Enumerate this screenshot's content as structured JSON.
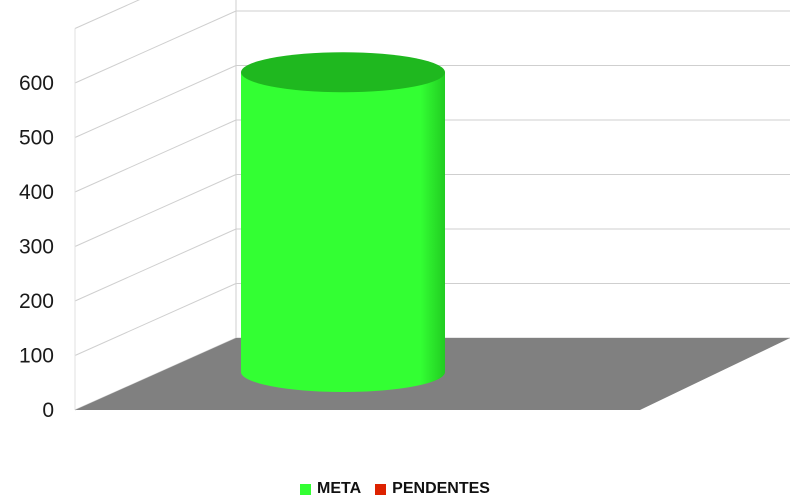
{
  "chart_data": {
    "type": "bar",
    "style": "3d-cylinder",
    "categories": [
      ""
    ],
    "series": [
      {
        "name": "META",
        "values": [
          550
        ],
        "color": "#33ff33"
      },
      {
        "name": "PENDENTES",
        "values": [
          0
        ],
        "color": "#dd2200"
      }
    ],
    "yticks": [
      0,
      100,
      200,
      300,
      400,
      500,
      600
    ],
    "ylim": [
      0,
      600
    ],
    "grid": true,
    "legend_position": "bottom-center",
    "floor_color": "#808080"
  }
}
